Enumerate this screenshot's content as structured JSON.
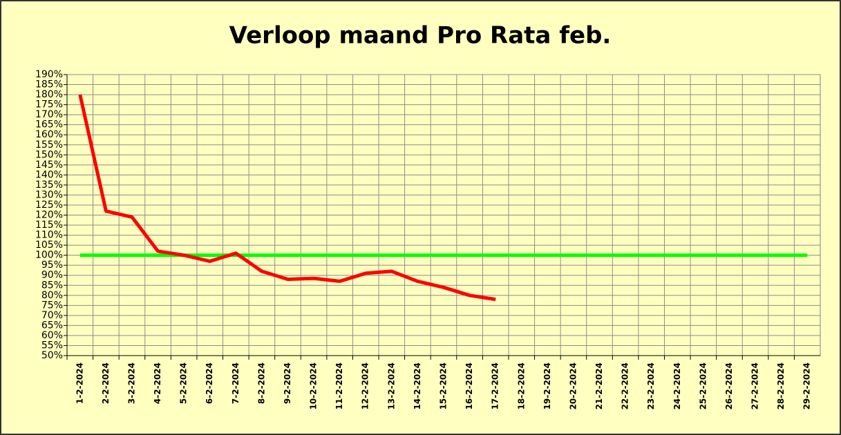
{
  "chart_data": {
    "type": "line",
    "title": "Verloop maand Pro Rata feb.",
    "categories": [
      "1-2-2024",
      "2-2-2024",
      "3-2-2024",
      "4-2-2024",
      "5-2-2024",
      "6-2-2024",
      "7-2-2024",
      "8-2-2024",
      "9-2-2024",
      "10-2-2024",
      "11-2-2024",
      "12-2-2024",
      "13-2-2024",
      "14-2-2024",
      "15-2-2024",
      "16-2-2024",
      "17-2-2024",
      "18-2-2024",
      "19-2-2024",
      "20-2-2024",
      "21-2-2024",
      "22-2-2024",
      "23-2-2024",
      "24-2-2024",
      "25-2-2024",
      "26-2-2024",
      "27-2-2024",
      "28-2-2024",
      "29-2-2024"
    ],
    "series": [
      {
        "color": "#ff0000",
        "values": [
          180,
          122,
          119,
          102,
          100,
          97,
          101,
          92,
          88,
          88.5,
          87,
          91,
          92,
          87,
          84,
          80,
          78,
          null,
          null,
          null,
          null,
          null,
          null,
          null,
          null,
          null,
          null,
          null,
          null
        ]
      },
      {
        "color": "#00ff00",
        "values": [
          100,
          100,
          100,
          100,
          100,
          100,
          100,
          100,
          100,
          100,
          100,
          100,
          100,
          100,
          100,
          100,
          100,
          100,
          100,
          100,
          100,
          100,
          100,
          100,
          100,
          100,
          100,
          100,
          100
        ]
      }
    ],
    "ylim": [
      50,
      190
    ],
    "yticks": [
      {
        "value": 50,
        "label": "50%"
      },
      {
        "value": 55,
        "label": "55%"
      },
      {
        "value": 60,
        "label": "60%"
      },
      {
        "value": 65,
        "label": "65%"
      },
      {
        "value": 70,
        "label": "70%"
      },
      {
        "value": 75,
        "label": "75%"
      },
      {
        "value": 80,
        "label": "80%"
      },
      {
        "value": 85,
        "label": "85%"
      },
      {
        "value": 90,
        "label": "90%"
      },
      {
        "value": 95,
        "label": "95%"
      },
      {
        "value": 100,
        "label": "100%"
      },
      {
        "value": 105,
        "label": "105%"
      },
      {
        "value": 110,
        "label": "110%"
      },
      {
        "value": 115,
        "label": "115%"
      },
      {
        "value": 120,
        "label": "120%"
      },
      {
        "value": 125,
        "label": "125%"
      },
      {
        "value": 130,
        "label": "130%"
      },
      {
        "value": 135,
        "label": "135%"
      },
      {
        "value": 140,
        "label": "140%"
      },
      {
        "value": 145,
        "label": "145%"
      },
      {
        "value": 150,
        "label": "150%"
      },
      {
        "value": 155,
        "label": "155%"
      },
      {
        "value": 160,
        "label": "160%"
      },
      {
        "value": 165,
        "label": "165%"
      },
      {
        "value": 170,
        "label": "170%"
      },
      {
        "value": 175,
        "label": "175%"
      },
      {
        "value": 180,
        "label": "180%"
      },
      {
        "value": 185,
        "label": "185%"
      },
      {
        "value": 190,
        "label": "190%"
      }
    ],
    "grid": true
  }
}
